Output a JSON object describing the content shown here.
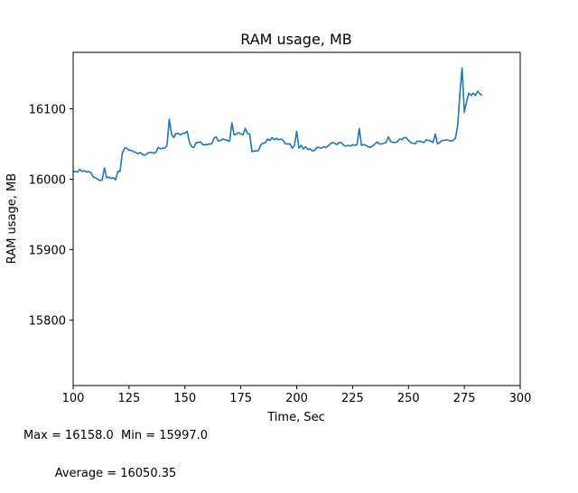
{
  "chart_data": {
    "type": "line",
    "title": "RAM usage, MB",
    "xlabel": "Time, Sec",
    "ylabel": "RAM usage, MB",
    "xlim": [
      100,
      300
    ],
    "ylim": [
      15707,
      16180
    ],
    "x_ticks": [
      "100",
      "125",
      "150",
      "175",
      "200",
      "225",
      "250",
      "275",
      "300"
    ],
    "y_ticks": [
      "15800",
      "15900",
      "16000",
      "16100"
    ],
    "x_tick_values": [
      100,
      125,
      150,
      175,
      200,
      225,
      250,
      275,
      300
    ],
    "y_tick_values": [
      15800,
      15900,
      16000,
      16100
    ],
    "grid": false,
    "line_color": "#1f77b4",
    "series": [
      {
        "x": [
          100,
          101,
          102,
          103,
          104,
          105,
          106,
          107,
          108,
          109,
          110,
          111,
          112,
          113,
          114,
          115,
          116,
          117,
          118,
          119,
          120,
          121,
          122,
          123,
          124,
          125,
          126,
          127,
          128,
          129,
          130,
          131,
          132,
          133,
          134,
          135,
          136,
          137,
          138,
          139,
          140,
          141,
          142,
          143,
          144,
          145,
          146,
          147,
          148,
          149,
          150,
          151,
          152,
          153,
          154,
          155,
          156,
          157,
          158,
          159,
          160,
          161,
          162,
          163,
          164,
          165,
          166,
          167,
          168,
          169,
          170,
          171,
          172,
          173,
          174,
          175,
          176,
          177,
          178,
          179,
          180,
          181,
          182,
          183,
          184,
          185,
          186,
          187,
          188,
          189,
          190,
          191,
          192,
          193,
          194,
          195,
          196,
          197,
          198,
          199,
          200,
          201,
          202,
          203,
          204,
          205,
          206,
          207,
          208,
          209,
          210,
          211,
          212,
          213,
          214,
          215,
          216,
          217,
          218,
          219,
          220,
          221,
          222,
          223,
          224,
          225,
          226,
          227,
          228,
          229,
          230,
          231,
          232,
          233,
          234,
          235,
          236,
          237,
          238,
          239,
          240,
          241,
          242,
          243,
          244,
          245,
          246,
          247,
          248,
          249,
          250,
          251,
          252,
          253,
          254,
          255,
          256,
          257,
          258,
          259,
          260,
          261,
          262,
          263,
          264,
          265,
          266,
          267,
          268,
          269,
          270,
          271,
          272,
          273,
          274,
          275,
          276,
          277,
          278,
          279,
          280,
          281,
          282,
          283
        ],
        "values": [
          16011,
          16011,
          16010,
          16014,
          16011,
          16012,
          16010,
          16011,
          16009,
          16003,
          16002,
          16000,
          15998,
          15999,
          16016,
          16002,
          16003,
          16001,
          16002,
          15999,
          16011,
          16011,
          16037,
          16044,
          16044,
          16041,
          16041,
          16039,
          16038,
          16036,
          16038,
          16035,
          16034,
          16036,
          16038,
          16038,
          16037,
          16038,
          16045,
          16043,
          16044,
          16044,
          16048,
          16085,
          16064,
          16059,
          16065,
          16065,
          16063,
          16065,
          16065,
          16068,
          16053,
          16046,
          16045,
          16052,
          16052,
          16053,
          16049,
          16049,
          16049,
          16050,
          16050,
          16058,
          16060,
          16054,
          16055,
          16057,
          16056,
          16055,
          16054,
          16080,
          16063,
          16064,
          16066,
          16064,
          16063,
          16072,
          16065,
          16064,
          16039,
          16040,
          16040,
          16041,
          16049,
          16051,
          16052,
          16057,
          16055,
          16059,
          16056,
          16058,
          16056,
          16057,
          16055,
          16050,
          16050,
          16050,
          16044,
          16048,
          16068,
          16044,
          16048,
          16043,
          16046,
          16042,
          16043,
          16040,
          16041,
          16045,
          16045,
          16044,
          16046,
          16045,
          16047,
          16050,
          16052,
          16051,
          16049,
          16052,
          16052,
          16048,
          16047,
          16048,
          16047,
          16049,
          16048,
          16049,
          16072,
          16048,
          16049,
          16048,
          16046,
          16045,
          16047,
          16050,
          16053,
          16050,
          16050,
          16051,
          16052,
          16060,
          16054,
          16052,
          16052,
          16053,
          16057,
          16056,
          16059,
          16059,
          16055,
          16052,
          16051,
          16050,
          16054,
          16054,
          16053,
          16052,
          16056,
          16055,
          16054,
          16052,
          16064,
          16050,
          16052,
          16055,
          16055,
          16056,
          16055,
          16054,
          16055,
          16058,
          16075,
          16120,
          16158,
          16095,
          16110,
          16122,
          16119,
          16122,
          16119,
          16125,
          16121,
          16119
        ]
      }
    ]
  },
  "stats": {
    "line1": "Max = 16158.0  Min = 15997.0",
    "line2": "Average = 16050.35"
  }
}
